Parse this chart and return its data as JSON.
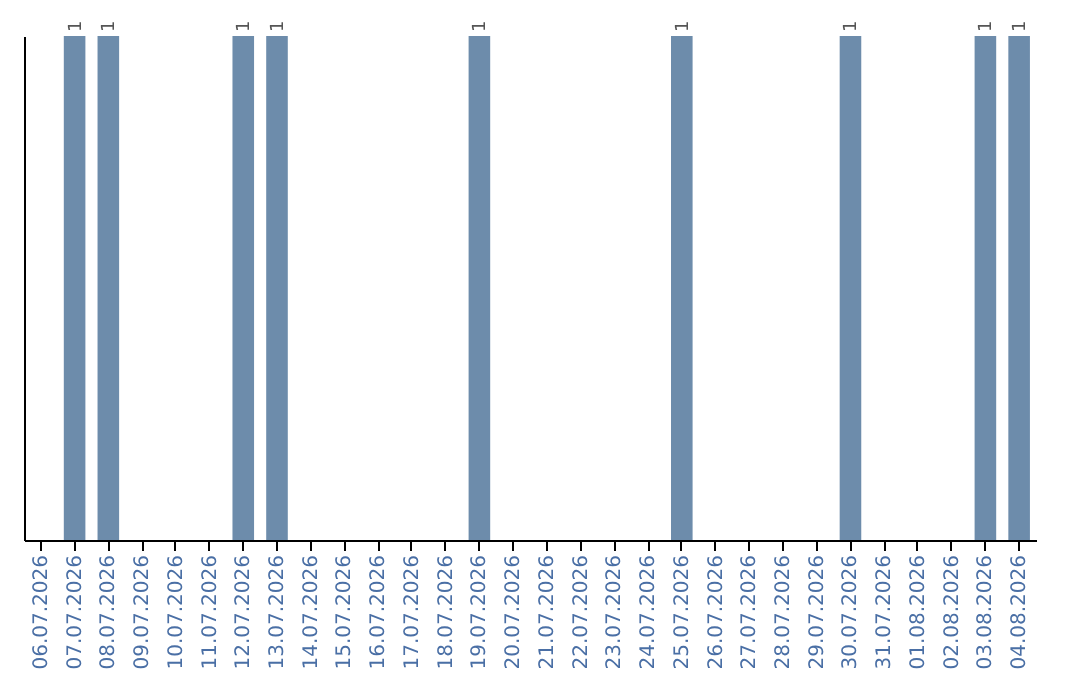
{
  "chart_data": {
    "type": "bar",
    "tick_labels": "x",
    "categories": [
      "06.07.2026",
      "07.07.2026",
      "08.07.2026",
      "09.07.2026",
      "10.07.2026",
      "11.07.2026",
      "12.07.2026",
      "13.07.2026",
      "14.07.2026",
      "15.07.2026",
      "16.07.2026",
      "17.07.2026",
      "18.07.2026",
      "19.07.2026",
      "20.07.2026",
      "21.07.2026",
      "22.07.2026",
      "23.07.2026",
      "24.07.2026",
      "25.07.2026",
      "26.07.2026",
      "27.07.2026",
      "28.07.2026",
      "29.07.2026",
      "30.07.2026",
      "31.07.2026",
      "01.08.2026",
      "02.08.2026",
      "03.08.2026",
      "04.08.2026"
    ],
    "values": [
      0,
      1,
      1,
      0,
      0,
      0,
      1,
      1,
      0,
      0,
      0,
      0,
      0,
      1,
      0,
      0,
      0,
      0,
      0,
      1,
      0,
      0,
      0,
      0,
      1,
      0,
      0,
      0,
      1,
      1
    ],
    "value_labels": [
      null,
      "1",
      "1",
      null,
      null,
      null,
      "1",
      "1",
      null,
      null,
      null,
      null,
      null,
      "1",
      null,
      null,
      null,
      null,
      null,
      "1",
      null,
      null,
      null,
      null,
      "1",
      null,
      null,
      null,
      "1",
      "1"
    ],
    "color": "#6d8cab"
  }
}
